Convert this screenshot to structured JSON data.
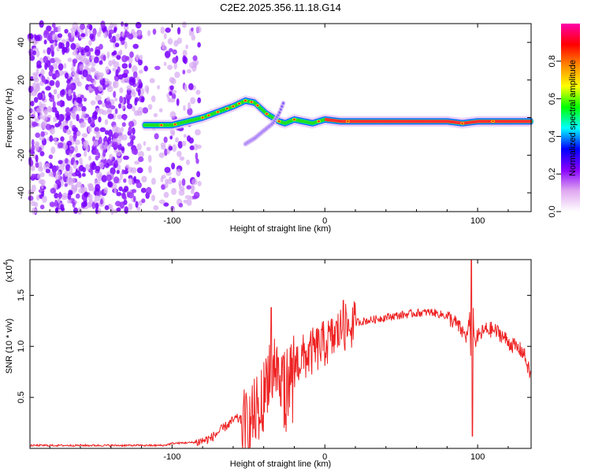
{
  "title": "C2E2.2025.356.11.18.G14",
  "chart_data": [
    {
      "type": "heatmap",
      "xlabel": "Height of straight line (km)",
      "ylabel": "Frequency (Hz)",
      "xlim": [
        -193,
        135
      ],
      "ylim": [
        -50,
        50
      ],
      "xticks": [
        -100,
        0,
        100
      ],
      "xtick_labels": [
        "-100",
        "0",
        "100"
      ],
      "yticks": [
        -40,
        -20,
        0,
        20,
        40
      ],
      "ytick_labels": [
        "-40",
        "-20",
        "0",
        "20",
        "40"
      ],
      "colorbar": {
        "label": "Normalized spectral amplitude",
        "range": [
          0,
          1
        ],
        "ticks": [
          0.0,
          0.2,
          0.4,
          0.6,
          0.8
        ],
        "tick_labels": [
          "0.0",
          "0.2",
          "0.4",
          "0.6",
          "0.8"
        ],
        "colormap": [
          "#ffffff",
          "#e0a8f0",
          "#8800ff",
          "#0000ff",
          "#00ffff",
          "#00ff00",
          "#ffff00",
          "#ff8800",
          "#ff0000",
          "#ff00aa"
        ]
      },
      "noise_region_x": [
        -193,
        -82
      ],
      "main_trace": {
        "x": [
          -118,
          -110,
          -100,
          -90,
          -80,
          -70,
          -60,
          -52,
          -46,
          -42,
          -38,
          -34,
          -30,
          -26,
          -20,
          -14,
          -8,
          0,
          10,
          30,
          60,
          80,
          90,
          100,
          110,
          120,
          135
        ],
        "y": [
          -4,
          -4,
          -4,
          -2,
          0,
          3,
          6,
          9,
          8,
          5,
          2,
          0,
          -2,
          -3,
          -1,
          -2,
          -3,
          -1,
          -2,
          -2,
          -2,
          -2,
          -3,
          -2,
          -2,
          -2,
          -2
        ]
      },
      "secondary_branch": {
        "x": [
          -52,
          -46,
          -40,
          -34,
          -30,
          -27
        ],
        "y": [
          -14,
          -11,
          -7,
          -3,
          2,
          8
        ]
      }
    },
    {
      "type": "line",
      "xlabel": "Height of straight line (km)",
      "ylabel": "SNR (10 * v/v)",
      "y_multiplier_label": "(x10",
      "y_multiplier_exp": "4",
      "xlim": [
        -193,
        135
      ],
      "ylim": [
        0,
        1.85
      ],
      "xticks": [
        -100,
        0,
        100
      ],
      "xtick_labels": [
        "-100",
        "0",
        "100"
      ],
      "yticks": [
        0.5,
        1.0,
        1.5
      ],
      "ytick_labels": [
        "0.5",
        "1.0",
        "1.5"
      ],
      "color": "#ee2222",
      "envelope": {
        "x": [
          -193,
          -150,
          -105,
          -100,
          -85,
          -75,
          -65,
          -58,
          -50,
          -45,
          -40,
          -35,
          -30,
          -25,
          -20,
          -15,
          -10,
          -5,
          0,
          5,
          10,
          20,
          30,
          40,
          50,
          60,
          70,
          80,
          86,
          90,
          93,
          95,
          96,
          97,
          98,
          100,
          105,
          110,
          115,
          120,
          125,
          130,
          135
        ],
        "y": [
          0.03,
          0.03,
          0.03,
          0.05,
          0.06,
          0.1,
          0.22,
          0.3,
          0.25,
          0.4,
          0.55,
          0.95,
          0.75,
          0.68,
          0.85,
          0.9,
          0.95,
          1.0,
          1.05,
          1.1,
          1.18,
          1.24,
          1.26,
          1.29,
          1.31,
          1.33,
          1.34,
          1.3,
          1.23,
          1.15,
          1.1,
          1.3,
          0.2,
          1.35,
          1.05,
          1.1,
          1.17,
          1.17,
          1.13,
          1.05,
          1.0,
          0.95,
          0.7
        ]
      },
      "notable_points": [
        {
          "x": -35,
          "y": 1.38
        },
        {
          "x": 12,
          "y": 1.45
        },
        {
          "x": 96,
          "y": 1.85
        },
        {
          "x": 96.5,
          "y": 0.12
        }
      ]
    }
  ]
}
